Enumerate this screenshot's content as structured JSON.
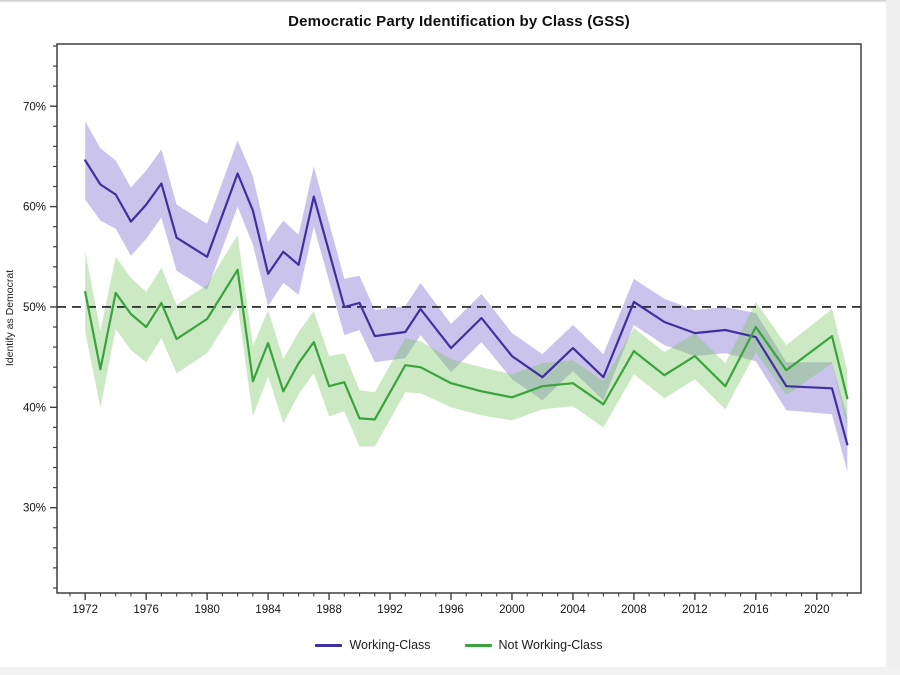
{
  "header": {
    "title": "Democratic Party Identification by Class (GSS)"
  },
  "y_axis": {
    "label": "Identify as Democrat"
  },
  "legend": {
    "items": [
      {
        "label": "Working-Class",
        "color": "#40309f"
      },
      {
        "label": "Not Working-Class",
        "color": "#3aa33d"
      }
    ]
  },
  "chart_data": {
    "type": "line",
    "title": "Democratic Party Identification by Class (GSS)",
    "xlabel": "",
    "ylabel": "Identify as Democrat",
    "grid": false,
    "legend_position": "bottom",
    "xlim": [
      1970.15,
      2022.9
    ],
    "ylim": [
      21.5,
      76.2
    ],
    "x_ticks": [
      1972,
      1976,
      1980,
      1984,
      1988,
      1992,
      1996,
      2000,
      2004,
      2008,
      2012,
      2016,
      2020
    ],
    "x_tick_labels": [
      "1972",
      "1976",
      "1980",
      "1984",
      "1988",
      "1992",
      "1996",
      "2000",
      "2004",
      "2008",
      "2012",
      "2016",
      "2020"
    ],
    "x_minor_step": 1,
    "y_ticks": [
      30,
      40,
      50,
      60,
      70
    ],
    "y_tick_labels": [
      "30%",
      "40%",
      "50%",
      "60%",
      "70%"
    ],
    "y_minor_step": 2,
    "reference_line": {
      "value": 50,
      "style": "dashed",
      "color": "#1c1c1c"
    },
    "x": [
      1972,
      1973,
      1974,
      1975,
      1976,
      1977,
      1978,
      1980,
      1982,
      1983,
      1984,
      1985,
      1986,
      1987,
      1988,
      1989,
      1990,
      1991,
      1993,
      1994,
      1996,
      1998,
      2000,
      2002,
      2004,
      2006,
      2008,
      2010,
      2012,
      2014,
      2016,
      2018,
      2021,
      2022
    ],
    "series": [
      {
        "name": "Working-Class",
        "color": "#40309f",
        "band_color": "rgba(122,106,205,0.40)",
        "values": [
          64.6,
          62.2,
          61.2,
          58.5,
          60.2,
          62.3,
          56.9,
          55.0,
          63.3,
          59.6,
          53.3,
          55.5,
          54.2,
          61.0,
          55.5,
          50.0,
          50.4,
          47.1,
          47.5,
          49.8,
          45.9,
          48.9,
          45.1,
          43.0,
          45.9,
          43.0,
          50.5,
          48.5,
          47.4,
          47.7,
          47.0,
          42.1,
          41.9,
          36.3
        ],
        "ci": [
          3.9,
          3.6,
          3.4,
          3.4,
          3.4,
          3.4,
          3.3,
          3.3,
          3.3,
          3.4,
          3.2,
          3.1,
          3.0,
          3.0,
          2.9,
          2.8,
          2.7,
          2.6,
          2.6,
          2.6,
          2.4,
          2.4,
          2.3,
          2.3,
          2.3,
          2.3,
          2.3,
          2.3,
          2.3,
          2.3,
          2.4,
          2.4,
          2.6,
          2.7
        ]
      },
      {
        "name": "Not Working-Class",
        "color": "#3aa33d",
        "band_color": "rgba(118,196,96,0.38)",
        "values": [
          51.5,
          43.8,
          51.4,
          49.3,
          48.0,
          50.4,
          46.8,
          48.8,
          53.7,
          42.6,
          46.4,
          41.6,
          44.4,
          46.5,
          42.1,
          42.5,
          38.9,
          38.8,
          44.2,
          44.0,
          42.4,
          41.6,
          41.0,
          42.1,
          42.4,
          40.3,
          45.6,
          43.2,
          45.1,
          42.1,
          48.0,
          43.7,
          47.1,
          40.9
        ],
        "ci": [
          4.0,
          3.8,
          3.6,
          3.6,
          3.5,
          3.5,
          3.4,
          3.4,
          3.5,
          3.5,
          3.3,
          3.2,
          3.1,
          3.1,
          3.0,
          2.9,
          2.8,
          2.7,
          2.7,
          2.6,
          2.4,
          2.4,
          2.3,
          2.3,
          2.3,
          2.3,
          2.3,
          2.3,
          2.3,
          2.3,
          2.5,
          2.5,
          2.7,
          2.8
        ]
      }
    ]
  }
}
